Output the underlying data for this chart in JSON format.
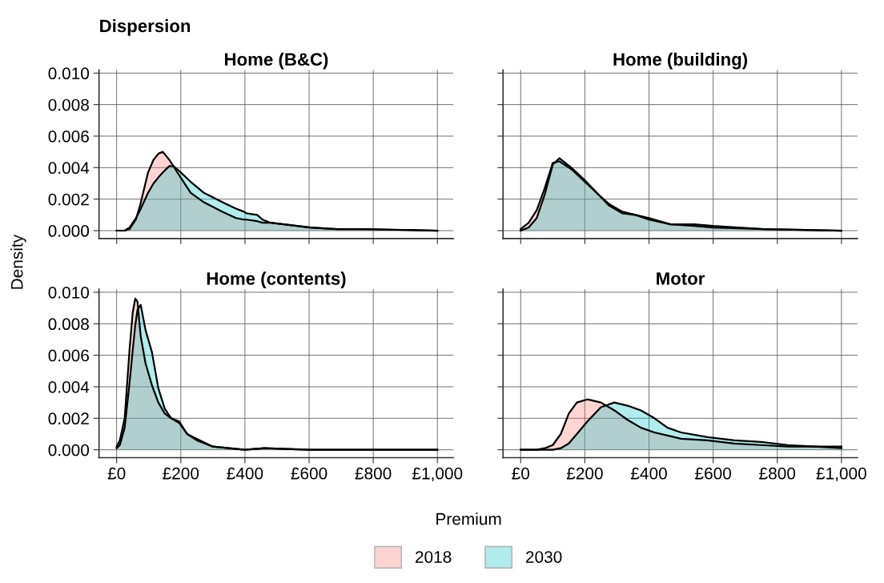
{
  "chart_data": [
    {
      "type": "area",
      "title": "Home (B&C)",
      "ylabel": "Density",
      "annotations": [
        "Dispersion"
      ],
      "legend": "bottom",
      "grid": true,
      "tick_labels": "y",
      "x": [
        0,
        25,
        40,
        60,
        73,
        98,
        115,
        131,
        144,
        164,
        177,
        189,
        231,
        272,
        330,
        372,
        397,
        405,
        438,
        455,
        480,
        521,
        604,
        687,
        770,
        1000
      ],
      "xlim": [
        -55,
        1050
      ],
      "ylim": [
        -0.0005,
        0.0102
      ],
      "xticks": [
        {
          "value": 0,
          "label": null
        },
        {
          "value": 200,
          "label": null
        },
        {
          "value": 400,
          "label": null
        },
        {
          "value": 600,
          "label": null
        },
        {
          "value": 800,
          "label": null
        },
        {
          "value": 1000,
          "label": null
        }
      ],
      "yticks": [
        {
          "value": 0,
          "label": "0.000"
        },
        {
          "value": 0.002,
          "label": "0.002"
        },
        {
          "value": 0.004,
          "label": "0.004"
        },
        {
          "value": 0.006,
          "label": "0.006"
        },
        {
          "value": 0.008,
          "label": "0.008"
        },
        {
          "value": 0.01,
          "label": "0.010"
        }
      ],
      "series": [
        {
          "name": "2018",
          "color": "#f8766d",
          "values": [
            0,
            0,
            0.0001,
            0.0007,
            0.0016,
            0.0037,
            0.0045,
            0.0049,
            0.005,
            0.0045,
            0.0041,
            0.0037,
            0.0024,
            0.0018,
            0.0012,
            0.0008,
            0.0007,
            0.0007,
            0.0006,
            0.0005,
            0.0005,
            0.0004,
            0.0002,
            0.0001,
            0.0001,
            0
          ]
        },
        {
          "name": "2030",
          "color": "#00bfc4",
          "values": [
            0,
            0,
            0.0002,
            0.0008,
            0.0013,
            0.0024,
            0.003,
            0.0034,
            0.0037,
            0.0041,
            0.0041,
            0.0039,
            0.0031,
            0.0024,
            0.0018,
            0.0014,
            0.0012,
            0.0011,
            0.001,
            0.0007,
            0.0005,
            0.0004,
            0.0002,
            0.0001,
            0.0001,
            0
          ]
        }
      ]
    },
    {
      "type": "area",
      "title": "Home (building)",
      "grid": true,
      "tick_labels": false,
      "x": [
        0,
        25,
        50,
        75,
        100,
        121,
        158,
        200,
        242,
        275,
        317,
        358,
        400,
        467,
        542,
        600,
        758,
        1000
      ],
      "xlim": [
        -55,
        1050
      ],
      "ylim": [
        -0.0005,
        0.0102
      ],
      "xticks": [
        {
          "value": 0,
          "label": null
        },
        {
          "value": 200,
          "label": null
        },
        {
          "value": 400,
          "label": null
        },
        {
          "value": 600,
          "label": null
        },
        {
          "value": 800,
          "label": null
        },
        {
          "value": 1000,
          "label": null
        }
      ],
      "yticks": [
        {
          "value": 0,
          "label": null
        },
        {
          "value": 0.002,
          "label": null
        },
        {
          "value": 0.004,
          "label": null
        },
        {
          "value": 0.006,
          "label": null
        },
        {
          "value": 0.008,
          "label": null
        },
        {
          "value": 0.01,
          "label": null
        }
      ],
      "series": [
        {
          "color": "#f8766d",
          "values": [
            0.0001,
            0.0005,
            0.0013,
            0.0027,
            0.0043,
            0.0044,
            0.0039,
            0.0031,
            0.0023,
            0.0017,
            0.0012,
            0.001,
            0.0008,
            0.0004,
            0.0004,
            0.0003,
            0.0001,
            0
          ]
        },
        {
          "color": "#00bfc4",
          "values": [
            0,
            0.0002,
            0.0008,
            0.0023,
            0.0042,
            0.0046,
            0.004,
            0.0032,
            0.0023,
            0.0016,
            0.0011,
            0.001,
            0.0007,
            0.0004,
            0.0003,
            0.0002,
            0.0001,
            0
          ]
        }
      ]
    },
    {
      "type": "area",
      "title": "Home (contents)",
      "xlabel": "Premium",
      "grid": true,
      "x": [
        0,
        10,
        25,
        40,
        50,
        58,
        65,
        75,
        90,
        110,
        130,
        150,
        170,
        195,
        220,
        250,
        300,
        350,
        400,
        460,
        600,
        1000
      ],
      "xlim": [
        -55,
        1050
      ],
      "ylim": [
        -0.0005,
        0.0102
      ],
      "xticks": [
        {
          "value": 0,
          "label": "£0"
        },
        {
          "value": 200,
          "label": "£200"
        },
        {
          "value": 400,
          "label": "£400"
        },
        {
          "value": 600,
          "label": "£600"
        },
        {
          "value": 800,
          "label": "£800"
        },
        {
          "value": 1000,
          "label": "£1,000"
        }
      ],
      "yticks": [
        {
          "value": 0,
          "label": "0.000"
        },
        {
          "value": 0.002,
          "label": "0.002"
        },
        {
          "value": 0.004,
          "label": "0.004"
        },
        {
          "value": 0.006,
          "label": "0.006"
        },
        {
          "value": 0.008,
          "label": "0.008"
        },
        {
          "value": 0.01,
          "label": "0.010"
        }
      ],
      "series": [
        {
          "color": "#f8766d",
          "values": [
            0.0002,
            0.0006,
            0.002,
            0.0063,
            0.0087,
            0.0096,
            0.0094,
            0.0072,
            0.0055,
            0.0041,
            0.003,
            0.0023,
            0.002,
            0.0017,
            0.001,
            0.0006,
            0.0002,
            0.0001,
            0,
            0.0001,
            0,
            0
          ]
        },
        {
          "color": "#00bfc4",
          "values": [
            0.0001,
            0.0003,
            0.0014,
            0.0042,
            0.0063,
            0.0079,
            0.0089,
            0.0092,
            0.0076,
            0.0062,
            0.0039,
            0.0026,
            0.002,
            0.0018,
            0.001,
            0.0007,
            0.0002,
            0.0001,
            0,
            0.0001,
            0,
            0
          ]
        }
      ]
    },
    {
      "type": "area",
      "title": "Motor",
      "grid": true,
      "tick_labels": "x",
      "x": [
        0,
        50,
        75,
        100,
        125,
        150,
        175,
        208,
        250,
        292,
        333,
        375,
        417,
        458,
        500,
        583,
        667,
        750,
        833,
        917,
        1000
      ],
      "xlim": [
        -55,
        1050
      ],
      "ylim": [
        -0.0005,
        0.0102
      ],
      "xticks": [
        {
          "value": 0,
          "label": "£0"
        },
        {
          "value": 200,
          "label": "£200"
        },
        {
          "value": 400,
          "label": "£400"
        },
        {
          "value": 600,
          "label": "£600"
        },
        {
          "value": 800,
          "label": "£800"
        },
        {
          "value": 1000,
          "label": "£1,000"
        }
      ],
      "yticks": [
        {
          "value": 0,
          "label": null
        },
        {
          "value": 0.002,
          "label": null
        },
        {
          "value": 0.004,
          "label": null
        },
        {
          "value": 0.006,
          "label": null
        },
        {
          "value": 0.008,
          "label": null
        },
        {
          "value": 0.01,
          "label": null
        }
      ],
      "series": [
        {
          "color": "#f8766d",
          "values": [
            0,
            0,
            0.0001,
            0.0003,
            0.001,
            0.0023,
            0.003,
            0.0032,
            0.003,
            0.0025,
            0.0019,
            0.0014,
            0.0011,
            0.0009,
            0.0007,
            0.0006,
            0.0004,
            0.0003,
            0.0002,
            0.0002,
            0.0001
          ]
        },
        {
          "color": "#00bfc4",
          "values": [
            0,
            0,
            0,
            0,
            0.0001,
            0.0004,
            0.001,
            0.0018,
            0.0027,
            0.003,
            0.0028,
            0.0025,
            0.002,
            0.0014,
            0.0011,
            0.0008,
            0.0006,
            0.0005,
            0.0003,
            0.0002,
            0.0002
          ]
        }
      ]
    }
  ]
}
